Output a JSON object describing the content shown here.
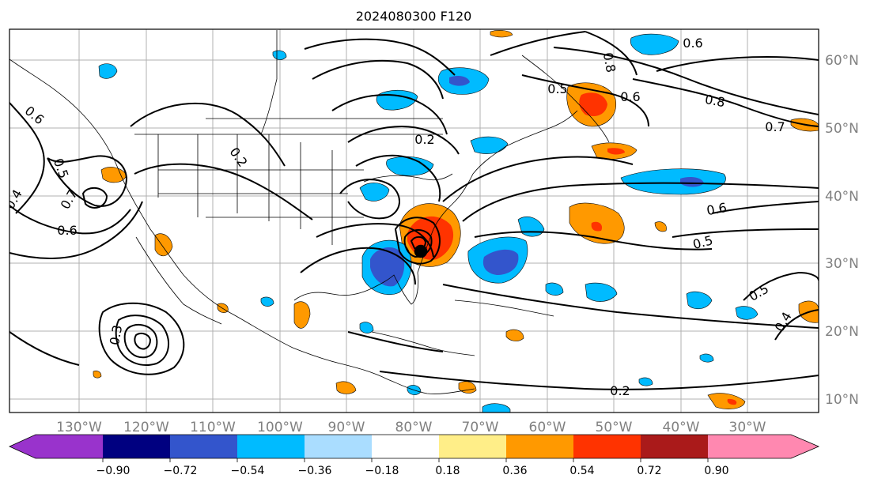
{
  "title": "2024080300 F120",
  "longitude_labels": [
    "130°W",
    "120°W",
    "110°W",
    "100°W",
    "90°W",
    "80°W",
    "70°W",
    "60°W",
    "50°W",
    "40°W",
    "30°W"
  ],
  "latitude_labels": [
    "60°N",
    "50°N",
    "40°N",
    "30°N",
    "20°N",
    "10°N"
  ],
  "contour_labels": [
    "0.2",
    "0.2",
    "0.2",
    "0.3",
    "0.4",
    "0.4",
    "0.5",
    "0.5",
    "0.5",
    "0.5",
    "0.6",
    "0.6",
    "0.6",
    "0.6",
    "0.6",
    "0.7",
    "0.7",
    "0.8",
    "0.8"
  ],
  "colorbar": {
    "ticks": [
      "−0.90",
      "−0.72",
      "−0.54",
      "−0.36",
      "−0.18",
      "0.18",
      "0.36",
      "0.54",
      "0.72",
      "0.90"
    ],
    "colors": [
      "#9933cc",
      "#000080",
      "#3355cc",
      "#00bbff",
      "#aaddff",
      "#ffffff",
      "#ffee88",
      "#ff9900",
      "#ff3300",
      "#aa1a1a",
      "#ff88b0"
    ],
    "extend": "both"
  }
}
